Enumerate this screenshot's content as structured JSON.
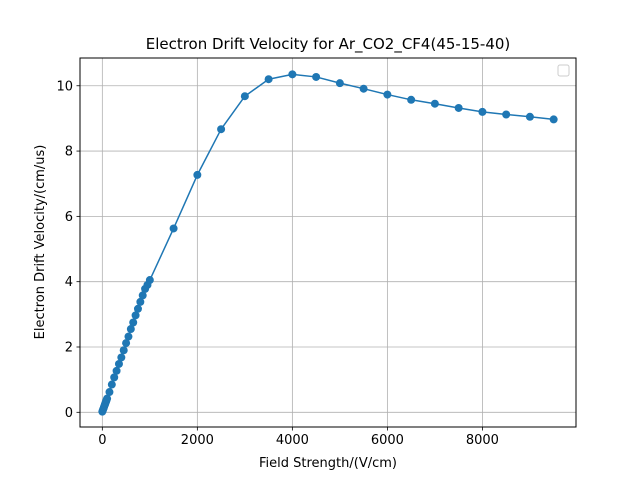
{
  "chart_data": {
    "type": "line",
    "title": "Electron Drift Velocity for Ar_CO2_CF4(45-15-40)",
    "xlabel": "Field Strength/(V/cm)",
    "ylabel": "Electron Drift Velocity/(cm/us)",
    "xlim": [
      -470,
      9970
    ],
    "ylim": [
      -0.45,
      10.85
    ],
    "xticks": [
      0,
      2000,
      4000,
      6000,
      8000
    ],
    "yticks": [
      0,
      2,
      4,
      6,
      8,
      10
    ],
    "xtick_labels": [
      "0",
      "2000",
      "4000",
      "6000",
      "8000"
    ],
    "ytick_labels": [
      "0",
      "2",
      "4",
      "6",
      "8",
      "10"
    ],
    "grid": true,
    "legend": "upper right, empty",
    "series_color": "#1f77b4",
    "series": [
      {
        "marker": "circle",
        "x": [
          0,
          10,
          20,
          30,
          40,
          50,
          60,
          70,
          80,
          90,
          100,
          150,
          200,
          250,
          300,
          350,
          400,
          450,
          500,
          550,
          600,
          650,
          700,
          750,
          800,
          850,
          900,
          950,
          1000,
          1500,
          2000,
          2500,
          3000,
          3500,
          4000,
          4500,
          5000,
          5500,
          6000,
          6500,
          7000,
          7500,
          8000,
          8500,
          9000,
          9500
        ],
        "y": [
          0.02,
          0.06,
          0.1,
          0.14,
          0.18,
          0.22,
          0.26,
          0.3,
          0.34,
          0.38,
          0.42,
          0.62,
          0.85,
          1.07,
          1.27,
          1.48,
          1.68,
          1.9,
          2.12,
          2.32,
          2.55,
          2.75,
          2.97,
          3.17,
          3.38,
          3.58,
          3.78,
          3.9,
          4.05,
          5.63,
          7.27,
          8.67,
          9.68,
          10.2,
          10.35,
          10.27,
          10.08,
          9.91,
          9.73,
          9.57,
          9.45,
          9.32,
          9.2,
          9.12,
          9.05,
          8.97
        ]
      }
    ]
  }
}
